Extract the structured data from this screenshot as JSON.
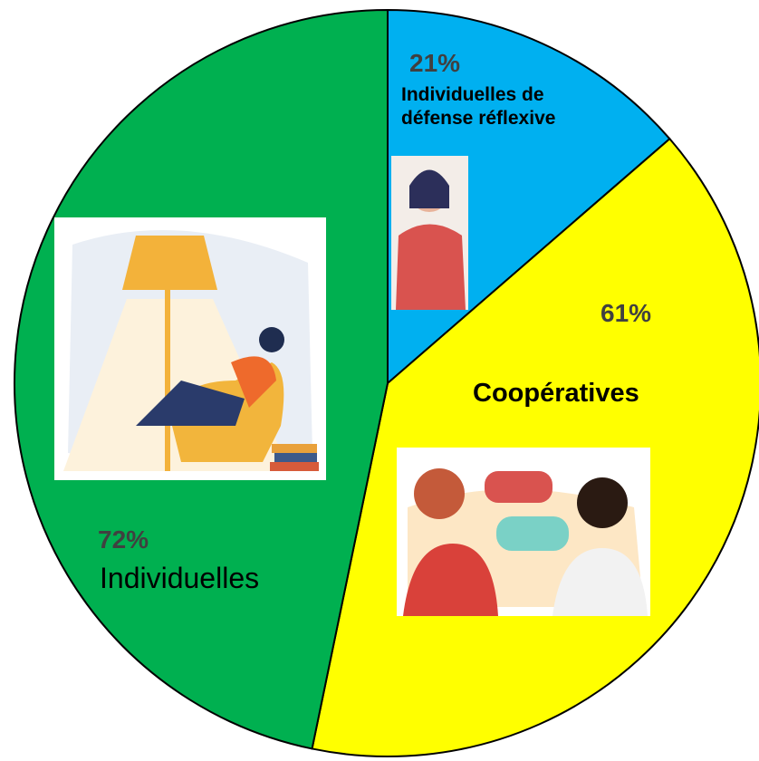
{
  "chart_data": {
    "type": "pie",
    "categories": [
      "Individuelles de défense réflexive",
      "Coopératives",
      "Individuelles"
    ],
    "values": [
      21,
      61,
      72
    ],
    "value_labels": [
      "21%",
      "61%",
      "72%"
    ],
    "colors": [
      "#00b0f0",
      "#ffff00",
      "#00b050"
    ]
  }
}
